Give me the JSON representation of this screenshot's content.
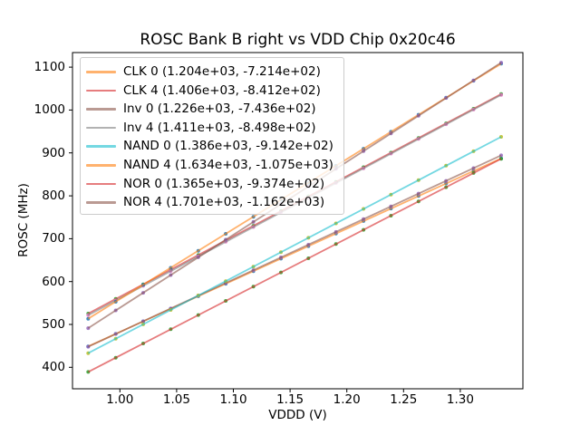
{
  "chart_data": {
    "type": "scatter",
    "title": "ROSC Bank B right vs VDD Chip 0x20c46",
    "xlabel": "VDDD (V)",
    "ylabel": "ROSC (MHz)",
    "xlim": [
      0.9582,
      1.3552
    ],
    "ylim": [
      350,
      1134
    ],
    "grid": false,
    "legend_position": "upper left",
    "x_ticks": [
      1.0,
      1.05,
      1.1,
      1.15,
      1.2,
      1.25,
      1.3
    ],
    "x_tick_labels": [
      "1.00",
      "1.05",
      "1.10",
      "1.15",
      "1.20",
      "1.25",
      "1.30"
    ],
    "y_ticks": [
      400,
      500,
      600,
      700,
      800,
      900,
      1000,
      1100
    ],
    "y_tick_labels": [
      "400",
      "500",
      "600",
      "700",
      "800",
      "900",
      "1000",
      "1100"
    ],
    "x_values": [
      0.972,
      0.9963,
      1.0205,
      1.0448,
      1.0691,
      1.0933,
      1.1176,
      1.1419,
      1.1661,
      1.1904,
      1.2147,
      1.2389,
      1.2632,
      1.2875,
      1.3117,
      1.336
    ],
    "line_alpha": 0.6,
    "marker_alpha": 0.85,
    "series": [
      {
        "name": "CLK 0",
        "legend_label": "CLK 0 (1.204e+03, -7.214e+02)",
        "slope": 1204.0,
        "intercept": -721.4,
        "line_color": "#ff7f0e",
        "marker_color": "#1f77b4"
      },
      {
        "name": "CLK 4",
        "legend_label": "CLK 4 (1.406e+03, -8.412e+02)",
        "slope": 1406.0,
        "intercept": -841.2,
        "line_color": "#d62728",
        "marker_color": "#2ca02c"
      },
      {
        "name": "Inv 0",
        "legend_label": "Inv 0 (1.226e+03, -7.436e+02)",
        "slope": 1226.0,
        "intercept": -743.6,
        "line_color": "#8c564b",
        "marker_color": "#9467bd"
      },
      {
        "name": "Inv 4",
        "legend_label": "Inv 4 (1.411e+03, -8.498e+02)",
        "slope": 1411.0,
        "intercept": -849.8,
        "line_color": "#7f7f7f",
        "marker_color": "#e377c2"
      },
      {
        "name": "NAND 0",
        "legend_label": "NAND 0 (1.386e+03, -9.142e+02)",
        "slope": 1386.0,
        "intercept": -914.2,
        "line_color": "#17becf",
        "marker_color": "#bcbd22"
      },
      {
        "name": "NAND 4",
        "legend_label": "NAND 4 (1.634e+03, -1.075e+03)",
        "slope": 1634.0,
        "intercept": -1075.0,
        "line_color": "#ff7f0e",
        "marker_color": "#1f77b4"
      },
      {
        "name": "NOR 0",
        "legend_label": "NOR 0 (1.365e+03, -9.374e+02)",
        "slope": 1365.0,
        "intercept": -937.4,
        "line_color": "#d62728",
        "marker_color": "#2ca02c"
      },
      {
        "name": "NOR 4",
        "legend_label": "NOR 4 (1.701e+03, -1.162e+03)",
        "slope": 1701.0,
        "intercept": -1162.0,
        "line_color": "#8c564b",
        "marker_color": "#9467bd"
      }
    ]
  }
}
